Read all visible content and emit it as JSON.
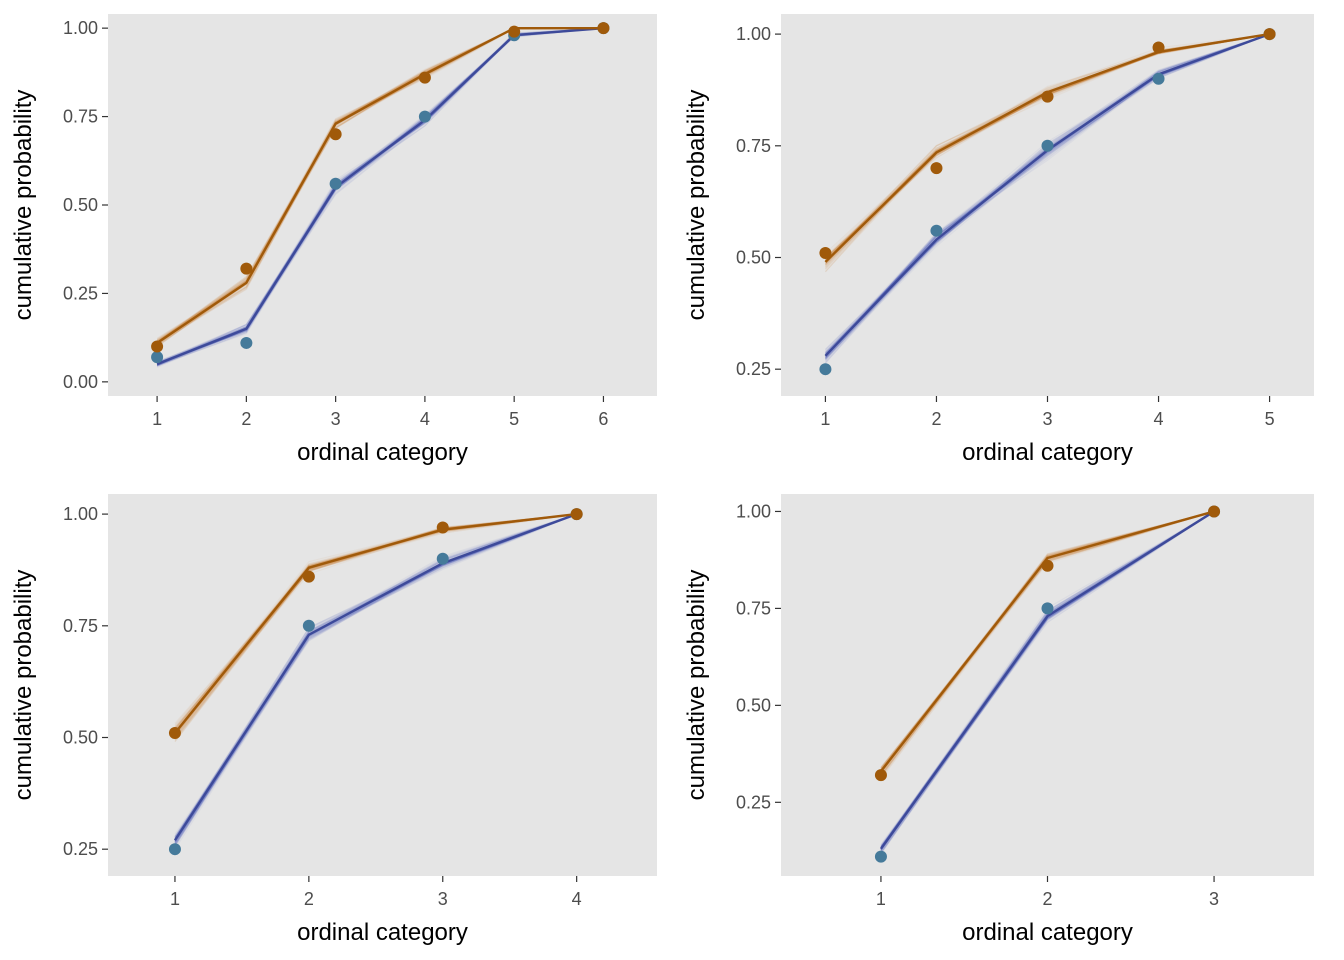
{
  "colors": {
    "panel_bg": "#e5e5e5",
    "group_a_line": "#a05a0a",
    "group_a_point": "#a05a0a",
    "group_a_band": "#c8782a",
    "group_b_line": "#3d4a9a",
    "group_b_point": "#457a9a",
    "group_b_band": "#4a55b5",
    "tick": "#333333"
  },
  "chart_data": [
    {
      "type": "line",
      "xlabel": "ordinal category",
      "ylabel": "cumulative probability",
      "x": [
        1,
        2,
        3,
        4,
        5,
        6
      ],
      "xlim": [
        0.45,
        6.6
      ],
      "ylim": [
        -0.04,
        1.04
      ],
      "yticks": [
        0.0,
        0.25,
        0.5,
        0.75,
        1.0
      ],
      "ytick_labels": [
        "0.00",
        "0.25",
        "0.50",
        "0.75",
        "1.00"
      ],
      "series": [
        {
          "group": "a",
          "fit": [
            0.11,
            0.28,
            0.73,
            0.87,
            1.0,
            1.0
          ],
          "observed": [
            0.1,
            0.32,
            0.7,
            0.86,
            0.99,
            1.0
          ]
        },
        {
          "group": "b",
          "fit": [
            0.05,
            0.15,
            0.55,
            0.74,
            0.98,
            1.0
          ],
          "observed": [
            0.07,
            0.11,
            0.56,
            0.75,
            0.98,
            1.0
          ]
        }
      ]
    },
    {
      "type": "line",
      "xlabel": "ordinal category",
      "ylabel": "cumulative probability",
      "x": [
        1,
        2,
        3,
        4,
        5
      ],
      "xlim": [
        0.6,
        5.4
      ],
      "ylim": [
        0.19,
        1.045
      ],
      "yticks": [
        0.25,
        0.5,
        0.75,
        1.0
      ],
      "ytick_labels": [
        "0.25",
        "0.50",
        "0.75",
        "1.00"
      ],
      "series": [
        {
          "group": "a",
          "fit": [
            0.49,
            0.735,
            0.87,
            0.96,
            1.0
          ],
          "observed": [
            0.51,
            0.7,
            0.86,
            0.97,
            1.0
          ]
        },
        {
          "group": "b",
          "fit": [
            0.28,
            0.54,
            0.74,
            0.91,
            1.0
          ],
          "observed": [
            0.25,
            0.56,
            0.75,
            0.9,
            1.0
          ]
        }
      ]
    },
    {
      "type": "line",
      "xlabel": "ordinal category",
      "ylabel": "cumulative probability",
      "x": [
        1,
        2,
        3,
        4
      ],
      "xlim": [
        0.5,
        4.6
      ],
      "ylim": [
        0.19,
        1.045
      ],
      "yticks": [
        0.25,
        0.5,
        0.75,
        1.0
      ],
      "ytick_labels": [
        "0.25",
        "0.50",
        "0.75",
        "1.00"
      ],
      "series": [
        {
          "group": "a",
          "fit": [
            0.51,
            0.88,
            0.965,
            1.0
          ],
          "observed": [
            0.51,
            0.86,
            0.97,
            1.0
          ]
        },
        {
          "group": "b",
          "fit": [
            0.27,
            0.73,
            0.89,
            1.0
          ],
          "observed": [
            0.25,
            0.75,
            0.9,
            1.0
          ]
        }
      ]
    },
    {
      "type": "line",
      "xlabel": "ordinal category",
      "ylabel": "cumulative probability",
      "x": [
        1,
        2,
        3
      ],
      "xlim": [
        0.4,
        3.6
      ],
      "ylim": [
        0.06,
        1.045
      ],
      "yticks": [
        0.25,
        0.5,
        0.75,
        1.0
      ],
      "ytick_labels": [
        "0.25",
        "0.50",
        "0.75",
        "1.00"
      ],
      "series": [
        {
          "group": "a",
          "fit": [
            0.33,
            0.88,
            1.0
          ],
          "observed": [
            0.32,
            0.86,
            1.0
          ]
        },
        {
          "group": "b",
          "fit": [
            0.13,
            0.73,
            1.0
          ],
          "observed": [
            0.11,
            0.75,
            1.0
          ]
        }
      ]
    }
  ]
}
